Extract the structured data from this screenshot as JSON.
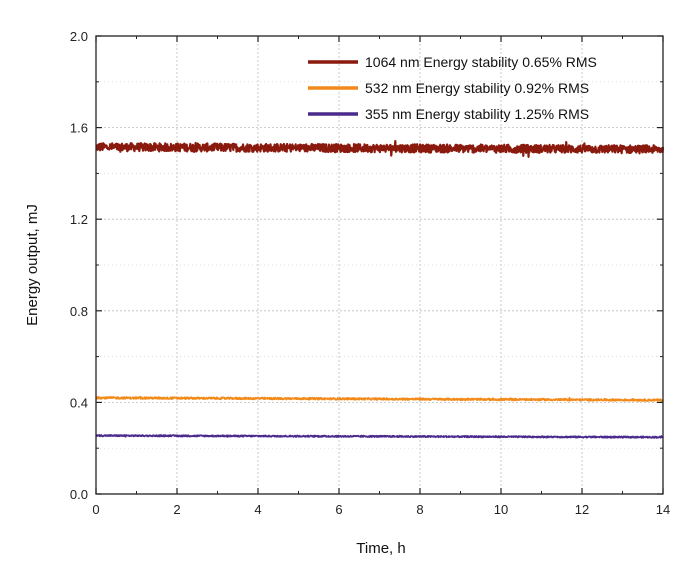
{
  "chart_data": {
    "type": "line",
    "title": "",
    "xlabel": "Time, h",
    "ylabel": "Energy output, mJ",
    "xlim": [
      0,
      14
    ],
    "ylim": [
      0.0,
      2.0
    ],
    "x_ticks": [
      "0",
      "2",
      "4",
      "6",
      "8",
      "10",
      "12",
      "14"
    ],
    "y_ticks": [
      "0.0",
      "0.4",
      "0.8",
      "1.2",
      "1.6",
      "2.0"
    ],
    "grid": true,
    "legend_position": "top-right",
    "series": [
      {
        "name": "1064 nm Energy stability 0.65% RMS",
        "color": "#8b1a0e",
        "mean": 1.51,
        "noise": 0.018,
        "start": 1.515,
        "end": 1.505,
        "x": [
          0,
          1,
          2,
          3,
          4,
          5,
          6,
          7,
          8,
          9,
          10,
          11,
          12,
          13,
          14
        ],
        "values": [
          1.51,
          1.515,
          1.515,
          1.515,
          1.51,
          1.515,
          1.515,
          1.51,
          1.51,
          1.51,
          1.51,
          1.51,
          1.505,
          1.505,
          1.505
        ]
      },
      {
        "name": "532 nm Energy stability 0.92% RMS",
        "color": "#f28a1a",
        "mean": 0.415,
        "noise": 0.004,
        "start": 0.42,
        "end": 0.41,
        "x": [
          0,
          1,
          2,
          3,
          4,
          5,
          6,
          7,
          8,
          9,
          10,
          11,
          12,
          13,
          14
        ],
        "values": [
          0.42,
          0.42,
          0.419,
          0.418,
          0.417,
          0.417,
          0.416,
          0.416,
          0.415,
          0.415,
          0.414,
          0.413,
          0.412,
          0.411,
          0.41
        ]
      },
      {
        "name": "355 nm Energy stability 1.25% RMS",
        "color": "#4a2a8c",
        "mean": 0.25,
        "noise": 0.003,
        "start": 0.255,
        "end": 0.248,
        "x": [
          0,
          1,
          2,
          3,
          4,
          5,
          6,
          7,
          8,
          9,
          10,
          11,
          12,
          13,
          14
        ],
        "values": [
          0.255,
          0.255,
          0.254,
          0.253,
          0.252,
          0.252,
          0.251,
          0.251,
          0.25,
          0.25,
          0.25,
          0.249,
          0.249,
          0.248,
          0.248
        ]
      }
    ]
  }
}
